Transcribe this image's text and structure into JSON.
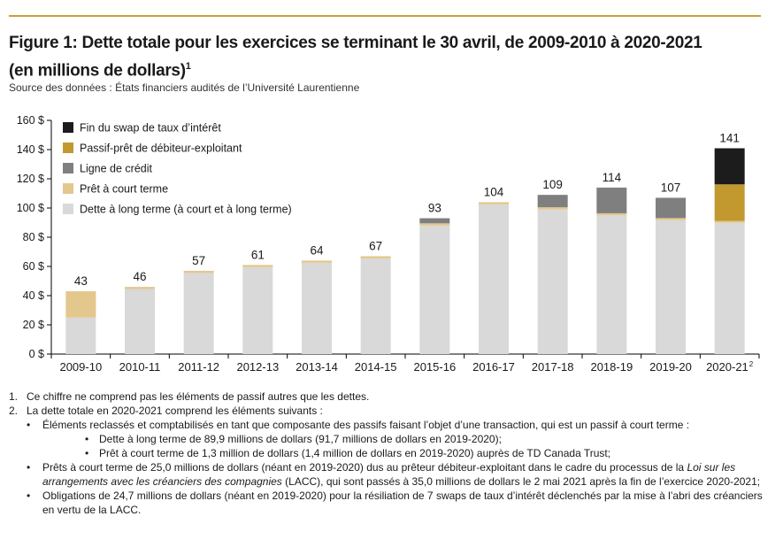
{
  "header": {
    "title_line1": "Figure 1: Dette totale pour les exercices se terminant le 30 avril, de 2009-2010 à 2020-2021",
    "title_line2": "(en millions de dollars)",
    "title_sup": "1",
    "source": "Source des données : États financiers audités de l’Université Laurentienne"
  },
  "colors": {
    "accent_line": "#c8a13a",
    "long_term": "#d9d9d9",
    "short_term": "#e3c78d",
    "credit": "#7f7f7f",
    "debtor": "#c2992e",
    "swap": "#1c1c1c"
  },
  "chart_data": {
    "type": "bar",
    "stacked": true,
    "title": "",
    "xlabel": "",
    "ylabel": "",
    "ylim": [
      0,
      160
    ],
    "yticks": [
      "0 $",
      "20 $",
      "40 $",
      "60 $",
      "80 $",
      "100 $",
      "120 $",
      "140 $",
      "160 $"
    ],
    "legend_position": "top-left",
    "categories": [
      "2009-10",
      "2010-11",
      "2011-12",
      "2012-13",
      "2013-14",
      "2014-15",
      "2015-16",
      "2016-17",
      "2017-18",
      "2018-19",
      "2019-20",
      "2020-21"
    ],
    "category_sup": [
      "",
      "",
      "",
      "",
      "",
      "",
      "",
      "",
      "",
      "",
      "",
      "2"
    ],
    "totals": [
      "43",
      "46",
      "57",
      "61",
      "64",
      "67",
      "93",
      "104",
      "109",
      "114",
      "107",
      "141"
    ],
    "series": [
      {
        "name": "Dette à long terme (à court et à long terme)",
        "color": "#d9d9d9",
        "values": [
          25,
          44.5,
          55.5,
          59.5,
          62.5,
          65.5,
          88,
          102.5,
          99,
          95,
          91.7,
          89.9
        ]
      },
      {
        "name": "Prêt à court terme",
        "color": "#e3c78d",
        "values": [
          18,
          1.5,
          1.5,
          1.5,
          1.5,
          1.5,
          1.5,
          1.5,
          1.5,
          1.4,
          1.4,
          1.3
        ]
      },
      {
        "name": "Ligne de crédit",
        "color": "#7f7f7f",
        "values": [
          0,
          0,
          0,
          0,
          0,
          0,
          3.5,
          0,
          8.5,
          17.6,
          13.9,
          0
        ]
      },
      {
        "name": "Passif-prêt de débiteur-exploitant",
        "color": "#c2992e",
        "values": [
          0,
          0,
          0,
          0,
          0,
          0,
          0,
          0,
          0,
          0,
          0,
          25.0
        ]
      },
      {
        "name": "Fin du swap de taux d’intérêt",
        "color": "#1c1c1c",
        "values": [
          0,
          0,
          0,
          0,
          0,
          0,
          0,
          0,
          0,
          0,
          0,
          24.7
        ]
      }
    ],
    "legend_order": [
      "Fin du swap de taux d’intérêt",
      "Passif-prêt de débiteur-exploitant",
      "Ligne de crédit",
      "Prêt à court terme",
      "Dette à long terme (à court et à long terme)"
    ]
  },
  "footnotes": {
    "n1": "1.",
    "t1": "Ce chiffre ne comprend pas les éléments de passif autres que les dettes.",
    "n2": "2.",
    "t2": "La dette totale en 2020-2021 comprend les éléments suivants :",
    "b1": "Éléments reclassés et comptabilisés en tant que composante des passifs faisant l’objet d’une transaction, qui est un passif à court terme :",
    "b1a": "Dette à long terme de 89,9 millions de dollars (91,7 millions de dollars en 2019-2020);",
    "b1b": "Prêt à court terme de 1,3 million de dollars (1,4 million de dollars en 2019-2020) auprès de TD Canada Trust;",
    "b2_pre": "Prêts à court terme de 25,0 millions de dollars (néant en 2019-2020) dus au prêteur débiteur-exploitant dans le cadre du processus de la ",
    "b2_italic": "Loi sur les arrangements avec les créanciers des compagnies",
    "b2_post": " (LACC), qui sont passés à 35,0 millions de dollars le 2 mai 2021 après la fin de l’exercice 2020-2021;",
    "b3": "Obligations de 24,7 millions de dollars (néant en 2019-2020) pour la résiliation de 7 swaps de taux d’intérêt déclenchés par la mise à l’abri des créanciers en vertu de la LACC."
  }
}
